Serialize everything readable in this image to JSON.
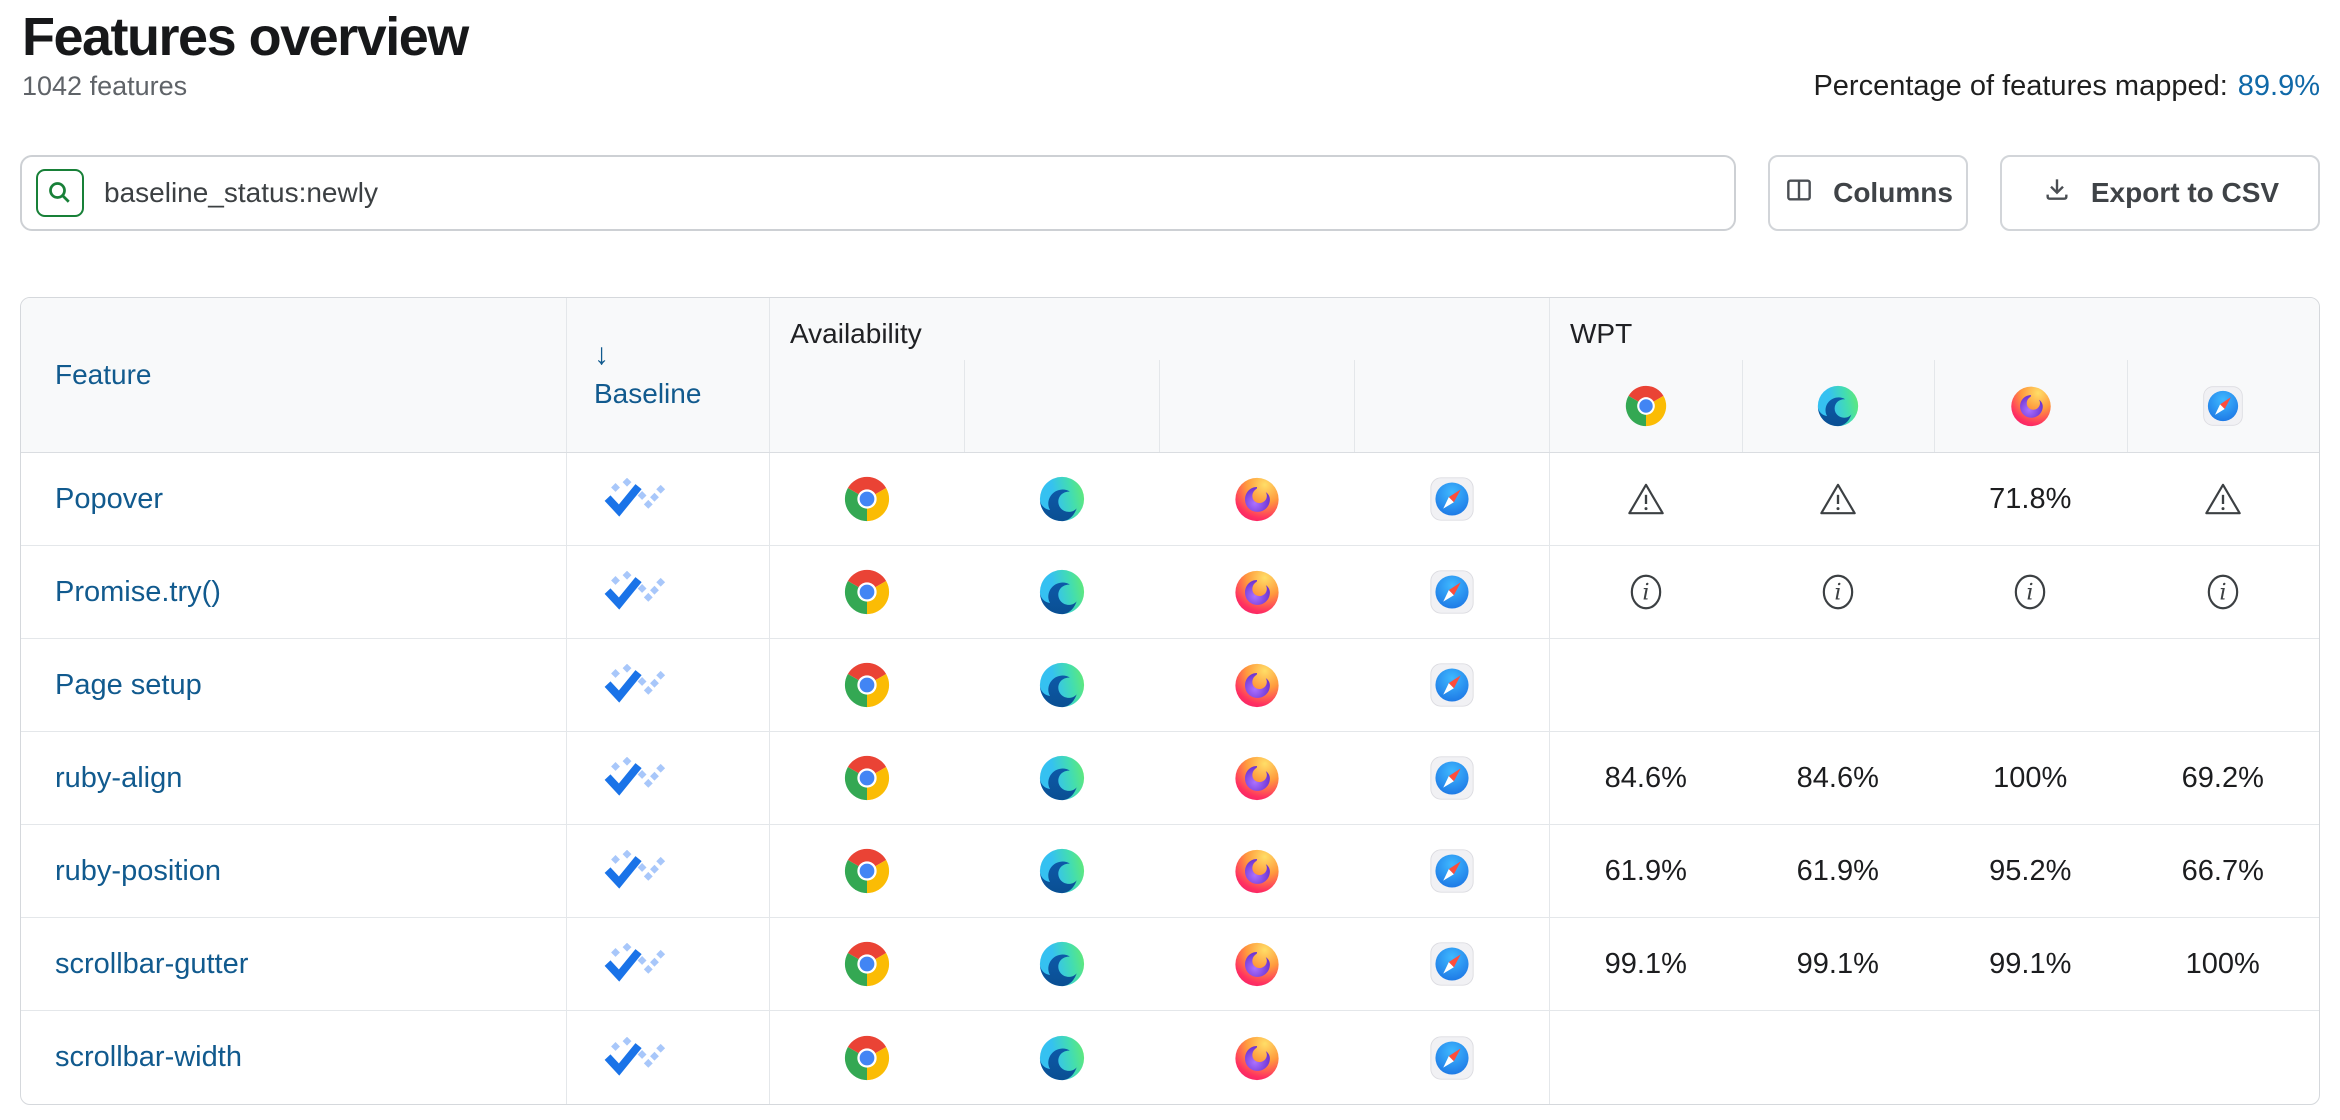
{
  "colors": {
    "link": "#115a8e",
    "mapped_value_blue": "#1069a8",
    "baseline_check": "#1a73e8",
    "baseline_dots": "#a8c7fa",
    "search_green": "#188038",
    "header_bg": "#f8f9fa"
  },
  "page": {
    "title": "Features overview",
    "feature_count": "1042 features",
    "mapped_label": "Percentage of features mapped:",
    "mapped_value": "89.9%"
  },
  "toolbar": {
    "search_value": "baseline_status:newly",
    "columns_label": "Columns",
    "export_label": "Export to CSV"
  },
  "table": {
    "headers": {
      "feature": "Feature",
      "baseline": "Baseline",
      "sort_arrow": "↓",
      "availability": "Availability",
      "wpt": "WPT"
    },
    "browsers": [
      "chrome",
      "edge",
      "firefox",
      "safari"
    ],
    "rows": [
      {
        "feature": "Popover",
        "baseline": "newly",
        "availability": [
          "chrome",
          "edge",
          "firefox",
          "safari"
        ],
        "wpt": [
          {
            "type": "warning"
          },
          {
            "type": "warning"
          },
          {
            "type": "value",
            "value": "71.8%"
          },
          {
            "type": "warning"
          }
        ]
      },
      {
        "feature": "Promise.try()",
        "baseline": "newly",
        "availability": [
          "chrome",
          "edge",
          "firefox",
          "safari"
        ],
        "wpt": [
          {
            "type": "info"
          },
          {
            "type": "info"
          },
          {
            "type": "info"
          },
          {
            "type": "info"
          }
        ]
      },
      {
        "feature": "Page setup",
        "baseline": "newly",
        "availability": [
          "chrome",
          "edge",
          "firefox",
          "safari"
        ],
        "wpt": [
          {
            "type": "none"
          },
          {
            "type": "none"
          },
          {
            "type": "none"
          },
          {
            "type": "none"
          }
        ]
      },
      {
        "feature": "ruby-align",
        "baseline": "newly",
        "availability": [
          "chrome",
          "edge",
          "firefox",
          "safari"
        ],
        "wpt": [
          {
            "type": "value",
            "value": "84.6%"
          },
          {
            "type": "value",
            "value": "84.6%"
          },
          {
            "type": "value",
            "value": "100%"
          },
          {
            "type": "value",
            "value": "69.2%"
          }
        ]
      },
      {
        "feature": "ruby-position",
        "baseline": "newly",
        "availability": [
          "chrome",
          "edge",
          "firefox",
          "safari"
        ],
        "wpt": [
          {
            "type": "value",
            "value": "61.9%"
          },
          {
            "type": "value",
            "value": "61.9%"
          },
          {
            "type": "value",
            "value": "95.2%"
          },
          {
            "type": "value",
            "value": "66.7%"
          }
        ]
      },
      {
        "feature": "scrollbar-gutter",
        "baseline": "newly",
        "availability": [
          "chrome",
          "edge",
          "firefox",
          "safari"
        ],
        "wpt": [
          {
            "type": "value",
            "value": "99.1%"
          },
          {
            "type": "value",
            "value": "99.1%"
          },
          {
            "type": "value",
            "value": "99.1%"
          },
          {
            "type": "value",
            "value": "100%"
          }
        ]
      },
      {
        "feature": "scrollbar-width",
        "baseline": "newly",
        "availability": [
          "chrome",
          "edge",
          "firefox",
          "safari"
        ],
        "wpt": [
          {
            "type": "none"
          },
          {
            "type": "none"
          },
          {
            "type": "none"
          },
          {
            "type": "none"
          }
        ]
      }
    ]
  }
}
